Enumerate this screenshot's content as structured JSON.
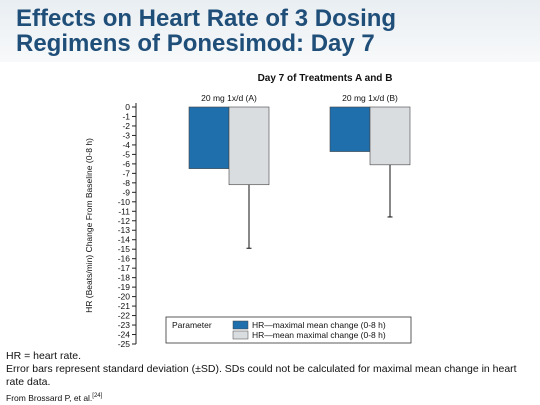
{
  "slide": {
    "title_line1": "Effects on Heart Rate of 3 Dosing",
    "title_line2": "Regimens of Ponesimod: Day 7"
  },
  "chart_data": {
    "type": "bar",
    "title": "Day 7 of Treatments A and B",
    "ylabel": "HR (Beats/min) Change From Baseline (0-8 h)",
    "xlabel": "",
    "categories": [
      "20 mg 1x/d (A)",
      "20 mg 1x/d (B)"
    ],
    "ylim": [
      -25,
      0
    ],
    "yticks": [
      0,
      -1,
      -2,
      -3,
      -4,
      -5,
      -6,
      -7,
      -8,
      -9,
      -10,
      -11,
      -12,
      -13,
      -14,
      -15,
      -16,
      -17,
      -18,
      -19,
      -20,
      -21,
      -22,
      -23,
      -24,
      -25
    ],
    "series": [
      {
        "name": "HR—maximal mean change (0-8 h)",
        "color": "#1f6fad",
        "values": [
          -6.5,
          -4.7
        ],
        "error": [
          null,
          null
        ]
      },
      {
        "name": "HR—mean maximal change (0-8 h)",
        "color": "#d9dde0",
        "values": [
          -8.2,
          -6.1
        ],
        "error": [
          6.7,
          5.5
        ]
      }
    ],
    "legend": {
      "title": "Parameter",
      "position": "bottom-right"
    },
    "grid": false
  },
  "footnotes": {
    "line1": "HR = heart rate.",
    "line2": "Error bars represent standard deviation (±SD). SDs could not be calculated for maximal mean change in heart rate data.",
    "ref_text": "From Brossard P, et al.",
    "ref_num": "[24]"
  }
}
